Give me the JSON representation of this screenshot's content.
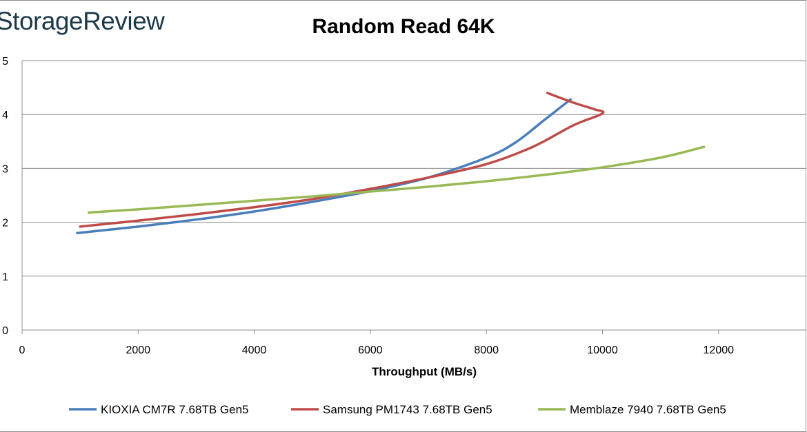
{
  "header": {
    "logo_text": "StorageReview"
  },
  "chart_data": {
    "type": "line",
    "title": "Random Read 64K",
    "xlabel": "Throughput (MB/s)",
    "ylabel": "",
    "xlim": [
      0,
      13500
    ],
    "ylim": [
      0,
      5
    ],
    "x_ticks": [
      "0",
      "2000",
      "4000",
      "6000",
      "8000",
      "10000",
      "12000"
    ],
    "y_ticks": [
      "0",
      "1",
      "2",
      "3",
      "4",
      "5"
    ],
    "grid": "horizontal",
    "legend": "bottom",
    "series": [
      {
        "name": "KIOXIA CM7R 7.68TB Gen5",
        "color": "#4a7ebb",
        "points": [
          [
            950,
            1.8
          ],
          [
            2000,
            1.92
          ],
          [
            3000,
            2.05
          ],
          [
            4000,
            2.2
          ],
          [
            5000,
            2.38
          ],
          [
            6000,
            2.58
          ],
          [
            7000,
            2.83
          ],
          [
            8000,
            3.2
          ],
          [
            8500,
            3.48
          ],
          [
            9000,
            3.9
          ],
          [
            9450,
            4.28
          ]
        ]
      },
      {
        "name": "Samsung PM1743 7.68TB Gen5",
        "color": "#be4b48",
        "points": [
          [
            1000,
            1.92
          ],
          [
            2000,
            2.03
          ],
          [
            3000,
            2.15
          ],
          [
            4000,
            2.28
          ],
          [
            5000,
            2.43
          ],
          [
            6000,
            2.62
          ],
          [
            7000,
            2.83
          ],
          [
            8000,
            3.08
          ],
          [
            8800,
            3.4
          ],
          [
            9500,
            3.8
          ],
          [
            10000,
            4.02
          ],
          [
            9850,
            4.1
          ],
          [
            9500,
            4.22
          ],
          [
            9050,
            4.4
          ]
        ]
      },
      {
        "name": "Memblaze 7940 7.68TB Gen5",
        "color": "#98b954",
        "points": [
          [
            1150,
            2.18
          ],
          [
            2000,
            2.24
          ],
          [
            3000,
            2.32
          ],
          [
            4000,
            2.4
          ],
          [
            5000,
            2.48
          ],
          [
            6000,
            2.57
          ],
          [
            7000,
            2.66
          ],
          [
            8000,
            2.76
          ],
          [
            9000,
            2.88
          ],
          [
            10000,
            3.02
          ],
          [
            11000,
            3.2
          ],
          [
            11750,
            3.4
          ]
        ]
      }
    ]
  }
}
